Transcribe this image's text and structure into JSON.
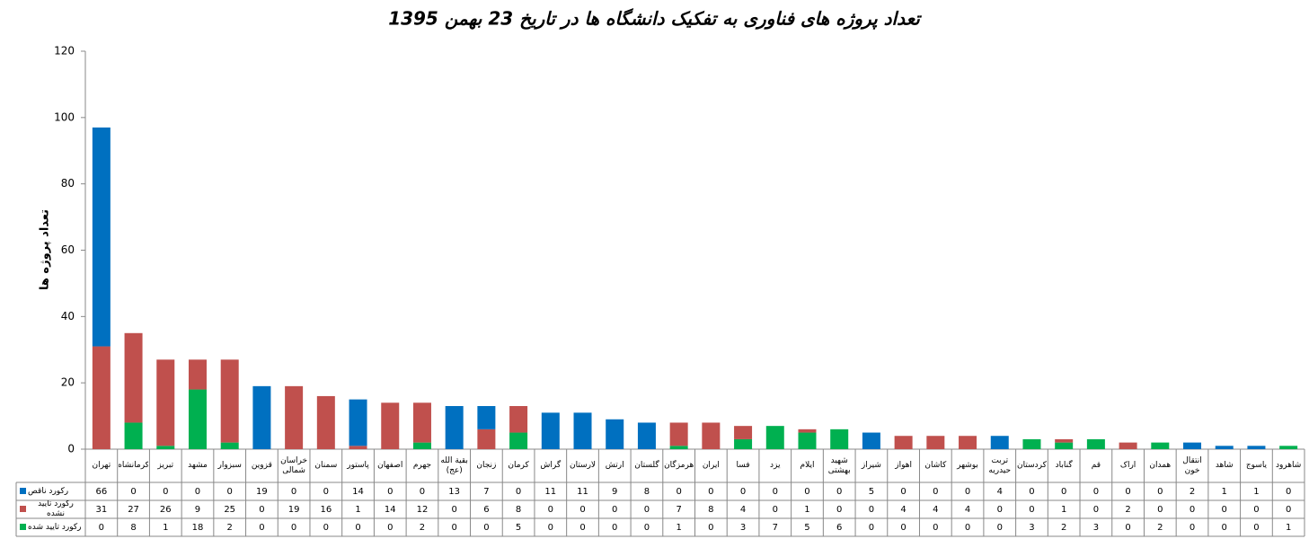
{
  "chart_data": {
    "type": "stacked-bar",
    "title": "تعداد پروژه های فناوری به تفکیک دانشگاه ها در تاریخ 23 بهمن 1395",
    "y_label": "تعداد پروژه ها",
    "categories": [
      "تهران",
      "کرمانشاه",
      "تبریز",
      "مشهد",
      "سبزوار",
      "قزوین",
      "خراسان شمالی",
      "سمنان",
      "پاستور",
      "اصفهان",
      "جهرم",
      "بقیة الله (عج)",
      "زنجان",
      "کرمان",
      "گراش",
      "لارستان",
      "ارتش",
      "گلستان",
      "هرمزگان",
      "ایران",
      "فسا",
      "یزد",
      "ایلام",
      "شهید بهشتی",
      "شیراز",
      "اهواز",
      "کاشان",
      "بوشهر",
      "تربت حیدریه",
      "کردستان",
      "گناباد",
      "قم",
      "اراک",
      "همدان",
      "انتقال خون",
      "شاهد",
      "یاسوج",
      "شاهرود"
    ],
    "series": [
      {
        "name": "رکورد تایید شده",
        "color": "#00b050",
        "values": [
          0,
          8,
          1,
          18,
          2,
          0,
          0,
          0,
          0,
          0,
          2,
          0,
          0,
          5,
          0,
          0,
          0,
          0,
          1,
          0,
          3,
          7,
          5,
          6,
          0,
          0,
          0,
          0,
          0,
          3,
          2,
          3,
          0,
          2,
          0,
          0,
          0,
          1
        ]
      },
      {
        "name": "رکورد تایید نشده",
        "color": "#c0504d",
        "values": [
          31,
          27,
          26,
          9,
          25,
          0,
          19,
          16,
          1,
          14,
          12,
          0,
          6,
          8,
          0,
          0,
          0,
          0,
          7,
          8,
          4,
          0,
          1,
          0,
          0,
          4,
          4,
          4,
          0,
          0,
          1,
          0,
          2,
          0,
          0,
          0,
          0,
          0
        ]
      },
      {
        "name": "رکورد ناقص",
        "color": "#0070c0",
        "values": [
          66,
          0,
          0,
          0,
          0,
          19,
          0,
          0,
          14,
          0,
          0,
          13,
          7,
          0,
          11,
          11,
          9,
          8,
          0,
          0,
          0,
          0,
          0,
          0,
          5,
          0,
          0,
          0,
          4,
          0,
          0,
          0,
          0,
          0,
          2,
          1,
          1,
          0
        ]
      }
    ],
    "ylim": [
      0,
      120
    ],
    "yticks": [
      0,
      20,
      40,
      60,
      80,
      100,
      120
    ]
  }
}
